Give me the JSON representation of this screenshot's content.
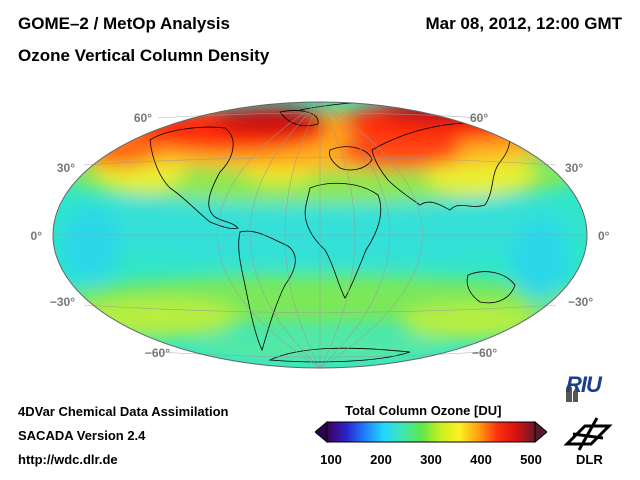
{
  "header": {
    "title": "GOME–2 / MetOp Analysis",
    "subtitle": "Ozone Vertical Column Density",
    "datetime": "Mar 08, 2012, 12:00 GMT"
  },
  "map": {
    "projection": "Hammer-Aitoff",
    "latitude_labels_left": [
      "60°",
      "30°",
      "0°",
      "−30°",
      "−60°"
    ],
    "latitude_labels_right": [
      "60°",
      "30°",
      "0°",
      "−30°",
      "−60°"
    ]
  },
  "footer": {
    "line1": "4DVar Chemical Data Assimilation",
    "line2": "SACADA Version 2.4",
    "line3": "http://wdc.dlr.de"
  },
  "colorbar": {
    "title": "Total Column Ozone [DU]",
    "ticks": [
      "100",
      "200",
      "300",
      "400",
      "500"
    ],
    "colors": [
      "#3a005a",
      "#2b20c8",
      "#1f7fff",
      "#22d8ff",
      "#3fe6b0",
      "#5ee84a",
      "#c8f020",
      "#fff020",
      "#ffa010",
      "#ff3010",
      "#d81010",
      "#6a1a2a"
    ]
  },
  "logos": {
    "riu": "RIU",
    "dlr": "DLR"
  }
}
